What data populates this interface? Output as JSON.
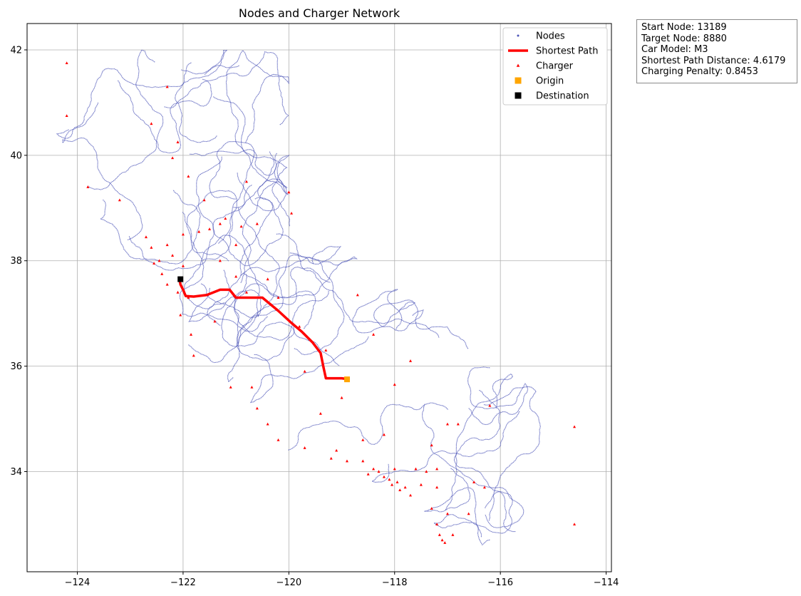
{
  "chart_data": {
    "type": "scatter",
    "title": "Nodes and Charger Network",
    "xlabel": "",
    "ylabel": "",
    "xlim": [
      -124.95,
      -113.9
    ],
    "ylim": [
      32.1,
      42.5
    ],
    "xticks": [
      -124,
      -122,
      -120,
      -118,
      -116,
      -114
    ],
    "xtick_labels": [
      "−124",
      "−122",
      "−120",
      "−118",
      "−116",
      "−114"
    ],
    "yticks": [
      34,
      36,
      38,
      40,
      42
    ],
    "ytick_labels": [
      "34",
      "36",
      "38",
      "40",
      "42"
    ],
    "grid": true,
    "legend_placement": "top-right",
    "legend": [
      {
        "label": "Nodes",
        "marker": "dot",
        "color": "#4c55b8"
      },
      {
        "label": "Shortest Path",
        "marker": "line",
        "color": "#ff0000"
      },
      {
        "label": "Charger",
        "marker": "triangle",
        "color": "#ff0000"
      },
      {
        "label": "Origin",
        "marker": "square",
        "color": "#ffa500"
      },
      {
        "label": "Destination",
        "marker": "square",
        "color": "#000000"
      }
    ],
    "series": [
      {
        "name": "Shortest Path",
        "kind": "line",
        "color": "#ff0000",
        "points": [
          [
            -118.85,
            35.75
          ],
          [
            -119.0,
            35.77
          ],
          [
            -119.3,
            35.77
          ],
          [
            -119.35,
            36.0
          ],
          [
            -119.4,
            36.25
          ],
          [
            -119.55,
            36.45
          ],
          [
            -119.75,
            36.65
          ],
          [
            -119.95,
            36.82
          ],
          [
            -120.2,
            37.05
          ],
          [
            -120.5,
            37.3
          ],
          [
            -120.75,
            37.3
          ],
          [
            -121.0,
            37.3
          ],
          [
            -121.12,
            37.45
          ],
          [
            -121.3,
            37.45
          ],
          [
            -121.55,
            37.35
          ],
          [
            -121.8,
            37.32
          ],
          [
            -121.95,
            37.33
          ],
          [
            -122.0,
            37.45
          ],
          [
            -122.05,
            37.55
          ],
          [
            -122.07,
            37.67
          ]
        ]
      },
      {
        "name": "Origin",
        "kind": "marker",
        "color": "#ffa500",
        "points": [
          [
            -118.9,
            35.75
          ]
        ]
      },
      {
        "name": "Destination",
        "kind": "marker",
        "color": "#000000",
        "points": [
          [
            -122.05,
            37.65
          ]
        ]
      },
      {
        "name": "Charger",
        "kind": "marker",
        "color": "#ff0000",
        "points": [
          [
            -124.2,
            41.75
          ],
          [
            -124.2,
            40.75
          ],
          [
            -122.3,
            41.3
          ],
          [
            -122.6,
            40.6
          ],
          [
            -123.8,
            39.4
          ],
          [
            -121.6,
            39.15
          ],
          [
            -121.5,
            38.6
          ],
          [
            -121.3,
            38.7
          ],
          [
            -121.2,
            38.8
          ],
          [
            -120.9,
            38.65
          ],
          [
            -120.6,
            38.7
          ],
          [
            -119.95,
            38.9
          ],
          [
            -120.0,
            39.3
          ],
          [
            -122.3,
            38.3
          ],
          [
            -122.45,
            38.0
          ],
          [
            -122.2,
            38.1
          ],
          [
            -122.0,
            37.9
          ],
          [
            -122.4,
            37.75
          ],
          [
            -122.3,
            37.55
          ],
          [
            -122.1,
            37.4
          ],
          [
            -121.9,
            37.3
          ],
          [
            -121.85,
            36.6
          ],
          [
            -121.8,
            36.2
          ],
          [
            -121.4,
            36.85
          ],
          [
            -121.0,
            37.7
          ],
          [
            -120.8,
            37.4
          ],
          [
            -120.4,
            37.65
          ],
          [
            -119.8,
            36.75
          ],
          [
            -119.3,
            36.3
          ],
          [
            -119.7,
            35.9
          ],
          [
            -119.0,
            35.4
          ],
          [
            -119.4,
            35.1
          ],
          [
            -120.6,
            35.2
          ],
          [
            -120.4,
            34.9
          ],
          [
            -120.2,
            34.6
          ],
          [
            -119.7,
            34.45
          ],
          [
            -119.2,
            34.25
          ],
          [
            -118.9,
            34.2
          ],
          [
            -118.6,
            34.2
          ],
          [
            -118.4,
            34.05
          ],
          [
            -118.3,
            34.0
          ],
          [
            -118.2,
            33.9
          ],
          [
            -118.1,
            33.85
          ],
          [
            -118.0,
            34.05
          ],
          [
            -117.95,
            33.8
          ],
          [
            -117.9,
            33.65
          ],
          [
            -117.8,
            33.7
          ],
          [
            -117.7,
            33.55
          ],
          [
            -117.6,
            34.05
          ],
          [
            -117.4,
            34.0
          ],
          [
            -117.2,
            34.05
          ],
          [
            -117.3,
            33.3
          ],
          [
            -117.2,
            33.0
          ],
          [
            -117.15,
            32.8
          ],
          [
            -117.1,
            32.7
          ],
          [
            -117.05,
            32.65
          ],
          [
            -116.9,
            32.8
          ],
          [
            -116.5,
            33.8
          ],
          [
            -116.3,
            33.7
          ],
          [
            -117.3,
            34.5
          ],
          [
            -117.0,
            34.9
          ],
          [
            -116.8,
            34.9
          ],
          [
            -116.2,
            35.25
          ],
          [
            -118.4,
            36.6
          ],
          [
            -117.7,
            36.1
          ],
          [
            -118.7,
            37.35
          ],
          [
            -118.0,
            35.65
          ],
          [
            -114.6,
            34.85
          ],
          [
            -114.6,
            33.0
          ],
          [
            -121.1,
            35.6
          ],
          [
            -120.7,
            35.6
          ],
          [
            -122.05,
            36.97
          ],
          [
            -122.55,
            37.95
          ],
          [
            -122.6,
            38.25
          ],
          [
            -122.7,
            38.45
          ],
          [
            -123.2,
            39.15
          ],
          [
            -122.2,
            39.95
          ],
          [
            -122.1,
            40.25
          ],
          [
            -121.9,
            39.6
          ],
          [
            -120.8,
            39.5
          ],
          [
            -122.0,
            38.5
          ],
          [
            -121.7,
            38.55
          ],
          [
            -121.3,
            38.0
          ],
          [
            -121.0,
            38.3
          ],
          [
            -120.2,
            37.3
          ],
          [
            -118.6,
            34.6
          ],
          [
            -118.2,
            34.7
          ],
          [
            -119.1,
            34.4
          ],
          [
            -118.5,
            33.95
          ],
          [
            -118.05,
            33.75
          ],
          [
            -117.5,
            33.75
          ],
          [
            -117.2,
            33.7
          ],
          [
            -116.6,
            33.2
          ],
          [
            -117.0,
            33.2
          ]
        ]
      }
    ]
  },
  "info_box": {
    "start_node": "Start Node: 13189",
    "target_node": "Target Node: 8880",
    "car_model": "Car Model: M3",
    "shortest_path_distance": "Shortest Path Distance: 4.6179",
    "charging_penalty": "Charging Penalty: 0.8453"
  }
}
